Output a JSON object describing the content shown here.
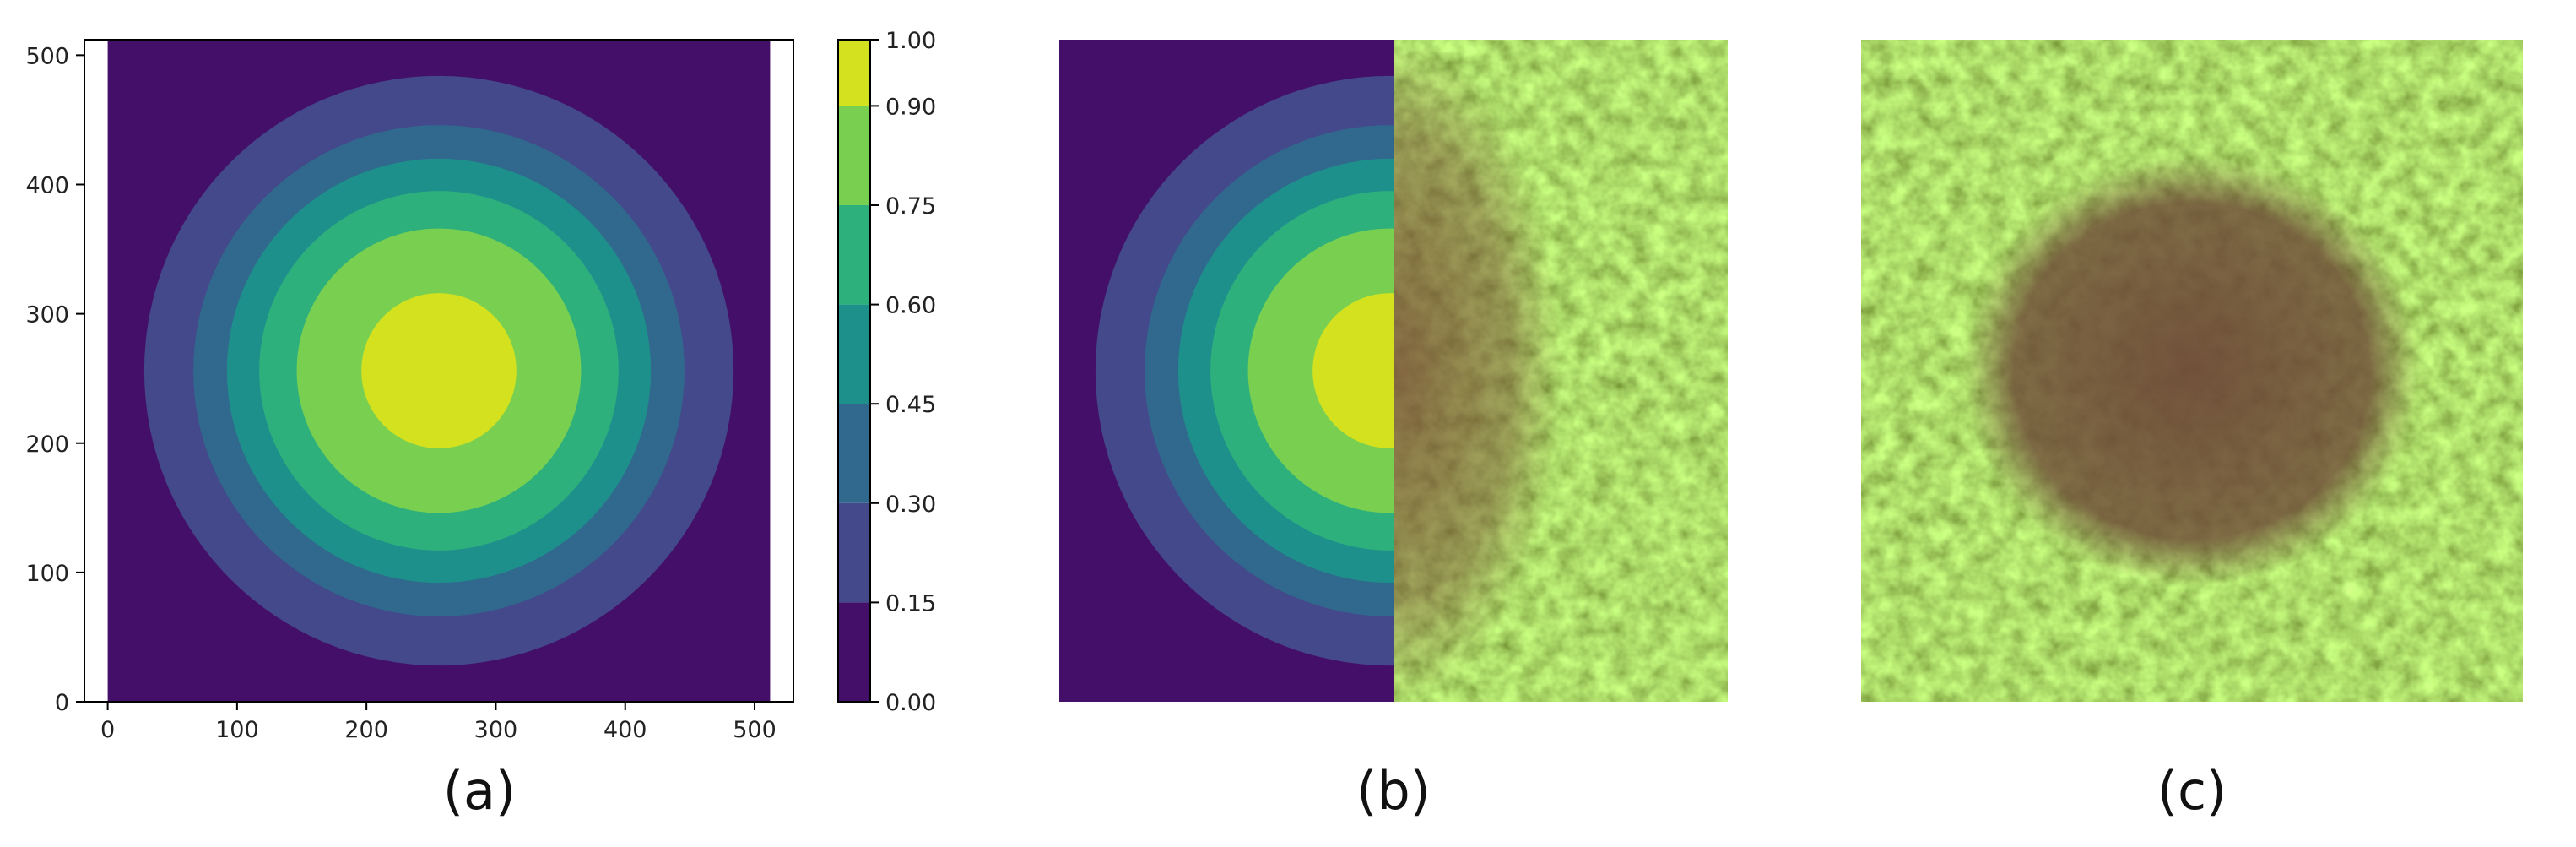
{
  "colors": {
    "levels": [
      "#440f68",
      "#43498a",
      "#30698d",
      "#1e908c",
      "#2eb07c",
      "#79d050",
      "#d3e11f"
    ],
    "texture_light": "#8fb63a",
    "texture_dark": "#5f7f1f",
    "dirt": "#7a5038"
  },
  "chart_data": [
    {
      "panel": "a",
      "type": "heatmap",
      "field": "radial filled-contour levels centred at (256, 256) on a 512x512 grid",
      "center": [
        256,
        256
      ],
      "xlim": [
        -18,
        530
      ],
      "ylim": [
        0,
        512
      ],
      "xticks": [
        0,
        100,
        200,
        300,
        400,
        500
      ],
      "yticks": [
        0,
        100,
        200,
        300,
        400,
        500
      ],
      "contour_bands": [
        {
          "range": [
            0.0,
            0.15
          ],
          "outer_radius": 999
        },
        {
          "range": [
            0.15,
            0.3
          ],
          "outer_radius": 228
        },
        {
          "range": [
            0.3,
            0.45
          ],
          "outer_radius": 190
        },
        {
          "range": [
            0.45,
            0.6
          ],
          "outer_radius": 164
        },
        {
          "range": [
            0.6,
            0.75
          ],
          "outer_radius": 139
        },
        {
          "range": [
            0.75,
            0.9
          ],
          "outer_radius": 110
        },
        {
          "range": [
            0.9,
            1.0
          ],
          "outer_radius": 60
        }
      ],
      "colorbar": {
        "ticks": [
          0.0,
          0.15,
          0.3,
          0.45,
          0.6,
          0.75,
          0.9,
          1.0
        ],
        "tick_labels": [
          "0.00",
          "0.15",
          "0.30",
          "0.45",
          "0.60",
          "0.75",
          "0.90",
          "1.00"
        ],
        "boundaries": [
          0.0,
          0.15,
          0.3,
          0.45,
          0.6,
          0.75,
          0.9,
          1.0
        ]
      },
      "title": "",
      "xlabel": "",
      "ylabel": "",
      "grid": false
    }
  ],
  "panels": [
    {
      "caption": "(a)"
    },
    {
      "caption": "(b)"
    },
    {
      "caption": "(c)"
    }
  ]
}
